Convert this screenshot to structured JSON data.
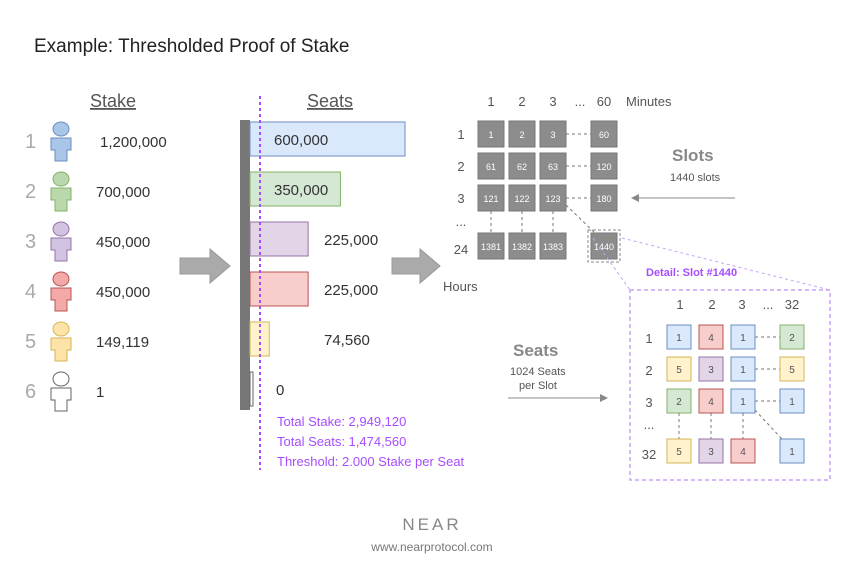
{
  "title": "Example: Thresholded Proof of Stake",
  "stake": {
    "heading": "Stake",
    "validators": [
      {
        "id": "1",
        "stake": "1,200,000",
        "color": "#a9c6e8",
        "stroke": "#6c8ebf"
      },
      {
        "id": "2",
        "stake": "700,000",
        "color": "#b9d9ad",
        "stroke": "#82b366"
      },
      {
        "id": "3",
        "stake": "450,000",
        "color": "#d3c3e2",
        "stroke": "#9673a6"
      },
      {
        "id": "4",
        "stake": "450,000",
        "color": "#f2a9a8",
        "stroke": "#b85450"
      },
      {
        "id": "5",
        "stake": "149,119",
        "color": "#fde3a8",
        "stroke": "#d6b656"
      },
      {
        "id": "6",
        "stake": "1",
        "color": "#ffffff",
        "stroke": "#666666"
      }
    ]
  },
  "seats": {
    "heading": "Seats",
    "values": [
      {
        "label": "600,000",
        "value": 600000,
        "color": "#dae8fc",
        "stroke": "#6c8ebf",
        "label_inside": true
      },
      {
        "label": "350,000",
        "value": 350000,
        "color": "#d5e8d4",
        "stroke": "#82b366",
        "label_inside": true
      },
      {
        "label": "225,000",
        "value": 225000,
        "color": "#e1d5e7",
        "stroke": "#9673a6",
        "label_inside": false
      },
      {
        "label": "225,000",
        "value": 225000,
        "color": "#f8cecc",
        "stroke": "#b85450",
        "label_inside": false
      },
      {
        "label": "74,560",
        "value": 74560,
        "color": "#fff2cc",
        "stroke": "#d6b656",
        "label_inside": false
      },
      {
        "label": "0",
        "value": 0,
        "color": "#ffffff",
        "stroke": "#666666",
        "label_inside": false
      }
    ],
    "totals": [
      "Total Stake: 2,949,120",
      "Total Seats: 1,474,560",
      "Threshold: 2.000 Stake per Seat"
    ],
    "accent": "#a64dff"
  },
  "slots": {
    "col_labels": [
      "1",
      "2",
      "3",
      "...",
      "60"
    ],
    "minutes_label": "Minutes",
    "row_labels": [
      "1",
      "2",
      "3",
      "...",
      "24"
    ],
    "hours_label": "Hours",
    "cells": [
      [
        "1",
        "2",
        "3",
        "60"
      ],
      [
        "61",
        "62",
        "63",
        "120"
      ],
      [
        "121",
        "122",
        "123",
        "180"
      ],
      [
        "1381",
        "1382",
        "1383",
        "1440"
      ]
    ],
    "callout_title": "Slots",
    "callout_sub": "1440 slots"
  },
  "detail": {
    "title": "Detail: Slot #1440",
    "col_labels": [
      "1",
      "2",
      "3",
      "...",
      "32"
    ],
    "row_labels": [
      "1",
      "2",
      "3",
      "...",
      "32"
    ],
    "cells": [
      [
        {
          "v": "1",
          "c": "b"
        },
        {
          "v": "4",
          "c": "r"
        },
        {
          "v": "1",
          "c": "b"
        },
        {
          "v": "2",
          "c": "g"
        }
      ],
      [
        {
          "v": "5",
          "c": "y"
        },
        {
          "v": "3",
          "c": "p"
        },
        {
          "v": "1",
          "c": "b"
        },
        {
          "v": "5",
          "c": "y"
        }
      ],
      [
        {
          "v": "2",
          "c": "g"
        },
        {
          "v": "4",
          "c": "r"
        },
        {
          "v": "1",
          "c": "b"
        },
        {
          "v": "1",
          "c": "b"
        }
      ],
      [
        {
          "v": "5",
          "c": "y"
        },
        {
          "v": "3",
          "c": "p"
        },
        {
          "v": "4",
          "c": "r"
        },
        {
          "v": "1",
          "c": "b"
        }
      ]
    ],
    "callout_title": "Seats",
    "callout_sub1": "1024 Seats",
    "callout_sub2": "per Slot"
  },
  "footer": {
    "logo": "NEAR",
    "url": "www.nearprotocol.com"
  }
}
